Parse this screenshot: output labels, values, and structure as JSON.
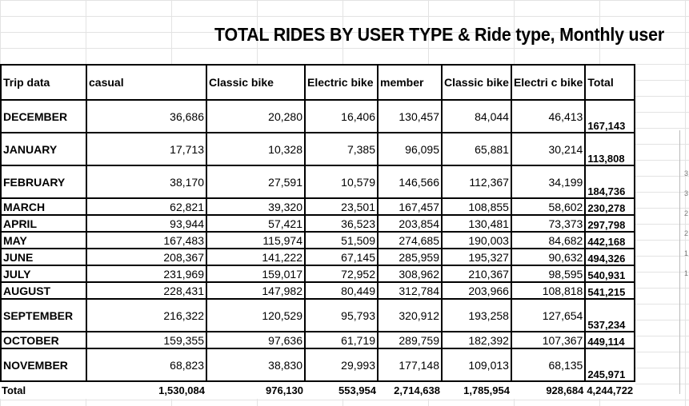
{
  "title": "TOTAL RIDES BY USER TYPE & Ride type, Monthly user",
  "headers": [
    "Trip data",
    "casual",
    "Classic bike",
    "Electric bike",
    "member",
    "Classic bike",
    "Electri c bike",
    "Total"
  ],
  "rows": [
    {
      "month": "DECEMBER",
      "casual": "36,686",
      "casual_classic": "20,280",
      "casual_electric": "16,406",
      "member": "130,457",
      "member_classic": "84,044",
      "member_electric": "46,413",
      "total": "167,143"
    },
    {
      "month": "JANUARY",
      "casual": "17,713",
      "casual_classic": "10,328",
      "casual_electric": "7,385",
      "member": "96,095",
      "member_classic": "65,881",
      "member_electric": "30,214",
      "total": "113,808"
    },
    {
      "month": "FEBRUARY",
      "casual": "38,170",
      "casual_classic": "27,591",
      "casual_electric": "10,579",
      "member": "146,566",
      "member_classic": "112,367",
      "member_electric": "34,199",
      "total": "184,736"
    },
    {
      "month": "MARCH",
      "casual": "62,821",
      "casual_classic": "39,320",
      "casual_electric": "23,501",
      "member": "167,457",
      "member_classic": "108,855",
      "member_electric": "58,602",
      "total": "230,278"
    },
    {
      "month": "APRIL",
      "casual": "93,944",
      "casual_classic": "57,421",
      "casual_electric": "36,523",
      "member": "203,854",
      "member_classic": "130,481",
      "member_electric": "73,373",
      "total": "297,798"
    },
    {
      "month": "MAY",
      "casual": "167,483",
      "casual_classic": "115,974",
      "casual_electric": "51,509",
      "member": "274,685",
      "member_classic": "190,003",
      "member_electric": "84,682",
      "total": "442,168"
    },
    {
      "month": "JUNE",
      "casual": "208,367",
      "casual_classic": "141,222",
      "casual_electric": "67,145",
      "member": "285,959",
      "member_classic": "195,327",
      "member_electric": "90,632",
      "total": "494,326"
    },
    {
      "month": "JULY",
      "casual": "231,969",
      "casual_classic": "159,017",
      "casual_electric": "72,952",
      "member": "308,962",
      "member_classic": "210,367",
      "member_electric": "98,595",
      "total": "540,931"
    },
    {
      "month": "AUGUST",
      "casual": "228,431",
      "casual_classic": "147,982",
      "casual_electric": "80,449",
      "member": "312,784",
      "member_classic": "203,966",
      "member_electric": "108,818",
      "total": "541,215"
    },
    {
      "month": "SEPTEMBER",
      "casual": "216,322",
      "casual_classic": "120,529",
      "casual_electric": "95,793",
      "member": "320,912",
      "member_classic": "193,258",
      "member_electric": "127,654",
      "total": "537,234"
    },
    {
      "month": "OCTOBER",
      "casual": "159,355",
      "casual_classic": "97,636",
      "casual_electric": "61,719",
      "member": "289,759",
      "member_classic": "182,392",
      "member_electric": "107,367",
      "total": "449,114"
    },
    {
      "month": "NOVEMBER",
      "casual": "68,823",
      "casual_classic": "38,830",
      "casual_electric": "29,993",
      "member": "177,148",
      "member_classic": "109,013",
      "member_electric": "68,135",
      "total": "245,971"
    }
  ],
  "totals": {
    "label": "Total",
    "casual": "1,530,084",
    "casual_classic": "976,130",
    "casual_electric": "553,954",
    "member": "2,714,638",
    "member_classic": "1,785,954",
    "member_electric": "928,684",
    "total": "4,244,722"
  },
  "edge_fragments": [
    "3",
    "3",
    "2",
    "2",
    "1",
    "1"
  ]
}
